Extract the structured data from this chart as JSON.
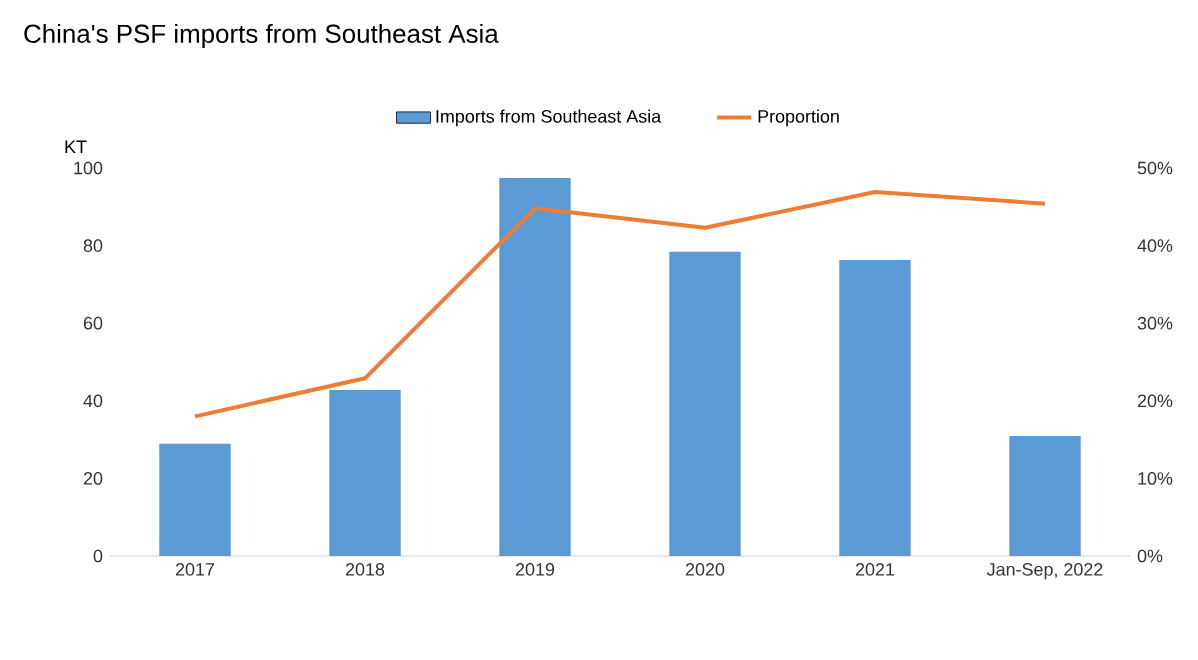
{
  "chart_data": {
    "type": "bar",
    "title": "China's PSF imports from Southeast Asia",
    "ylabel": "KT",
    "categories": [
      "2017",
      "2018",
      "2019",
      "2020",
      "2021",
      "Jan-Sep, 2022"
    ],
    "series": [
      {
        "name": "Imports from Southeast Asia",
        "color": "#5b9bd5",
        "values": [
          28.9,
          42.8,
          97.4,
          78.4,
          76.3,
          30.9
        ]
      },
      {
        "name": "Proportion",
        "type": "line",
        "axis": "y2",
        "color": "#ed7d31",
        "values": [
          18.0,
          22.9,
          44.8,
          42.3,
          46.9,
          45.4
        ]
      }
    ],
    "ylim": [
      0,
      100
    ],
    "yticks": [
      0,
      20,
      40,
      60,
      80,
      100
    ],
    "y2lim": [
      0,
      50
    ],
    "y2ticks": [
      {
        "value": 0,
        "label": "0%"
      },
      {
        "value": 10,
        "label": "10%"
      },
      {
        "value": 20,
        "label": "20%"
      },
      {
        "value": 30,
        "label": "30%"
      },
      {
        "value": 40,
        "label": "40%"
      },
      {
        "value": 50,
        "label": "50%"
      }
    ],
    "legend": "top"
  }
}
